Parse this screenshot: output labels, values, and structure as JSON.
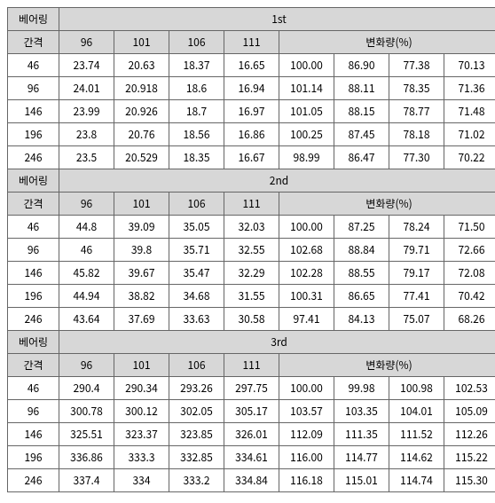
{
  "labels": {
    "rowHeader1": "베어링",
    "rowHeader2": "간격",
    "changeLabel": "변화량(%)"
  },
  "colors": {
    "headerBg": "#d7d7d7",
    "border": "#666666",
    "text": "#000000",
    "bg": "#ffffff"
  },
  "fontSize": 12,
  "columnHeaders": [
    "96",
    "101",
    "106",
    "111"
  ],
  "sections": [
    {
      "title": "1st",
      "rows": [
        {
          "k": "46",
          "v": [
            "23.74",
            "20.63",
            "18.37",
            "16.65"
          ],
          "p": [
            "100.00",
            "86.90",
            "77.38",
            "70.13"
          ]
        },
        {
          "k": "96",
          "v": [
            "24.01",
            "20.918",
            "18.6",
            "16.94"
          ],
          "p": [
            "101.14",
            "88.11",
            "78.35",
            "71.36"
          ]
        },
        {
          "k": "146",
          "v": [
            "23.99",
            "20.926",
            "18.7",
            "16.97"
          ],
          "p": [
            "101.05",
            "88.15",
            "78.77",
            "71.48"
          ]
        },
        {
          "k": "196",
          "v": [
            "23.8",
            "20.76",
            "18.56",
            "16.86"
          ],
          "p": [
            "100.25",
            "87.45",
            "78.18",
            "71.02"
          ]
        },
        {
          "k": "246",
          "v": [
            "23.5",
            "20.529",
            "18.35",
            "16.67"
          ],
          "p": [
            "98.99",
            "86.47",
            "77.30",
            "70.22"
          ]
        }
      ]
    },
    {
      "title": "2nd",
      "rows": [
        {
          "k": "46",
          "v": [
            "44.8",
            "39.09",
            "35.05",
            "32.03"
          ],
          "p": [
            "100.00",
            "87.25",
            "78.24",
            "71.50"
          ]
        },
        {
          "k": "96",
          "v": [
            "46",
            "39.8",
            "35.71",
            "32.55"
          ],
          "p": [
            "102.68",
            "88.84",
            "79.71",
            "72.66"
          ]
        },
        {
          "k": "146",
          "v": [
            "45.82",
            "39.67",
            "35.47",
            "32.29"
          ],
          "p": [
            "102.28",
            "88.55",
            "79.17",
            "72.08"
          ]
        },
        {
          "k": "196",
          "v": [
            "44.94",
            "38.82",
            "34.68",
            "31.55"
          ],
          "p": [
            "100.31",
            "86.65",
            "77.41",
            "70.42"
          ]
        },
        {
          "k": "246",
          "v": [
            "43.64",
            "37.69",
            "33.63",
            "30.58"
          ],
          "p": [
            "97.41",
            "84.13",
            "75.07",
            "68.26"
          ]
        }
      ]
    },
    {
      "title": "3rd",
      "rows": [
        {
          "k": "46",
          "v": [
            "290.4",
            "290.34",
            "293.26",
            "297.75"
          ],
          "p": [
            "100.00",
            "99.98",
            "100.98",
            "102.53"
          ]
        },
        {
          "k": "96",
          "v": [
            "300.78",
            "300.12",
            "302.05",
            "305.17"
          ],
          "p": [
            "103.57",
            "103.35",
            "104.01",
            "105.09"
          ]
        },
        {
          "k": "146",
          "v": [
            "325.51",
            "323.37",
            "323.85",
            "326.01"
          ],
          "p": [
            "112.09",
            "111.35",
            "111.52",
            "112.26"
          ]
        },
        {
          "k": "196",
          "v": [
            "336.86",
            "333.3",
            "332.85",
            "334.61"
          ],
          "p": [
            "116.00",
            "114.77",
            "114.62",
            "115.22"
          ]
        },
        {
          "k": "246",
          "v": [
            "337.4",
            "334",
            "333.2",
            "334.84"
          ],
          "p": [
            "116.18",
            "115.01",
            "114.74",
            "115.30"
          ]
        }
      ]
    }
  ]
}
